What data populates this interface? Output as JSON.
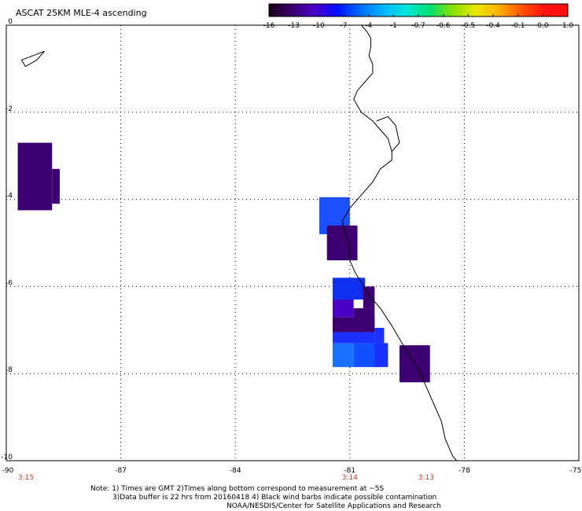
{
  "title": "ASCAT 25KM MLE-4 ascending",
  "colorbar": {
    "labels": [
      "-16",
      "-13",
      "-10",
      "-7",
      "-4",
      "-1",
      "-0.7",
      "-0.6",
      "-0.5",
      "-0.4",
      "-0.1",
      "0.0",
      "1.0"
    ],
    "colors": [
      "#1a0014",
      "#3d0070",
      "#4b00c8",
      "#0010ff",
      "#0070ff",
      "#00b8ff",
      "#00e8d8",
      "#00e070",
      "#8ce000",
      "#e8e800",
      "#ffb000",
      "#ff5000",
      "#ff1010"
    ]
  },
  "axes": {
    "lon_ticks": [
      "-90",
      "-87",
      "-84",
      "-81",
      "-78",
      "-75"
    ],
    "lat_ticks": [
      "0",
      "-2",
      "-4",
      "-6",
      "-8",
      "-10"
    ],
    "lon_range": [
      -90,
      -75
    ],
    "lat_range": [
      0,
      -10
    ]
  },
  "pass_times": [
    {
      "label": "3:15",
      "lon": -90
    },
    {
      "label": "3:14",
      "lon": -81
    },
    {
      "label": "3:13",
      "lon": -79
    }
  ],
  "notes": [
    "Note: 1) Times are GMT 2)Times along bottom correspond to measurement at ~5S",
    "3)Data buffer is 22 hrs from 20160418 4) Black wind barbs indicate possible contamination",
    "NOAA/NESDIS/Center for Satellite Applications and Research"
  ],
  "cells": [
    {
      "lon0": -89.7,
      "lon1": -88.8,
      "lat0": -2.7,
      "lat1": -4.25,
      "color": "#3d0070"
    },
    {
      "lon0": -88.8,
      "lon1": -88.6,
      "lat0": -3.3,
      "lat1": -4.1,
      "color": "#3d0070"
    },
    {
      "lon0": -81.8,
      "lon1": -81.0,
      "lat0": -3.95,
      "lat1": -4.8,
      "color": "#1a50ff"
    },
    {
      "lon0": -81.6,
      "lon1": -80.8,
      "lat0": -4.6,
      "lat1": -5.4,
      "color": "#3d0070"
    },
    {
      "lon0": -81.45,
      "lon1": -80.6,
      "lat0": -5.8,
      "lat1": -6.3,
      "color": "#1030f0"
    },
    {
      "lon0": -80.65,
      "lon1": -80.35,
      "lat0": -6.0,
      "lat1": -6.5,
      "color": "#3d0070"
    },
    {
      "lon0": -81.45,
      "lon1": -80.9,
      "lat0": -6.3,
      "lat1": -6.7,
      "color": "#4b00c8"
    },
    {
      "lon0": -80.9,
      "lon1": -80.35,
      "lat0": -6.5,
      "lat1": -6.85,
      "color": "#3d0070"
    },
    {
      "lon0": -81.45,
      "lon1": -80.35,
      "lat0": -6.7,
      "lat1": -7.05,
      "color": "#3d0070"
    },
    {
      "lon0": -81.45,
      "lon1": -80.35,
      "lat0": -7.05,
      "lat1": -7.3,
      "color": "#1a30ff"
    },
    {
      "lon0": -81.45,
      "lon1": -80.9,
      "lat0": -7.3,
      "lat1": -7.85,
      "color": "#1a70ff"
    },
    {
      "lon0": -80.9,
      "lon1": -80.3,
      "lat0": -7.3,
      "lat1": -7.85,
      "color": "#1050ff"
    },
    {
      "lon0": -80.35,
      "lon1": -80.0,
      "lat0": -7.3,
      "lat1": -7.85,
      "color": "#1a30ff"
    },
    {
      "lon0": -80.35,
      "lon1": -80.1,
      "lat0": -6.95,
      "lat1": -7.3,
      "color": "#1a30ff"
    },
    {
      "lon0": -79.7,
      "lon1": -78.9,
      "lat0": -7.35,
      "lat1": -8.2,
      "color": "#3d0070"
    }
  ],
  "coastline": [
    [
      -80.7,
      0.0
    ],
    [
      -80.55,
      -0.15
    ],
    [
      -80.45,
      -0.3
    ],
    [
      -80.45,
      -0.5
    ],
    [
      -80.5,
      -0.7
    ],
    [
      -80.4,
      -0.9
    ],
    [
      -80.4,
      -1.1
    ],
    [
      -80.6,
      -1.3
    ],
    [
      -80.8,
      -1.5
    ],
    [
      -80.9,
      -1.7
    ],
    [
      -80.7,
      -2.0
    ],
    [
      -80.4,
      -2.2
    ],
    [
      -80.2,
      -2.4
    ],
    [
      -80.0,
      -2.6
    ],
    [
      -79.9,
      -2.9
    ],
    [
      -79.9,
      -3.1
    ],
    [
      -80.2,
      -3.3
    ],
    [
      -80.4,
      -3.6
    ],
    [
      -80.7,
      -3.9
    ],
    [
      -81.0,
      -4.2
    ],
    [
      -81.2,
      -4.5
    ],
    [
      -81.1,
      -4.8
    ],
    [
      -81.0,
      -5.1
    ],
    [
      -81.0,
      -5.4
    ],
    [
      -80.85,
      -5.7
    ],
    [
      -80.7,
      -5.9
    ],
    [
      -80.5,
      -6.2
    ],
    [
      -80.2,
      -6.5
    ],
    [
      -79.9,
      -6.9
    ],
    [
      -79.7,
      -7.2
    ],
    [
      -79.5,
      -7.5
    ],
    [
      -79.2,
      -7.9
    ],
    [
      -79.0,
      -8.3
    ],
    [
      -78.8,
      -8.7
    ],
    [
      -78.6,
      -9.1
    ],
    [
      -78.5,
      -9.5
    ],
    [
      -78.3,
      -9.9
    ],
    [
      -78.2,
      -10.0
    ]
  ],
  "gulf_inlet": [
    [
      -80.3,
      -2.2
    ],
    [
      -80.0,
      -2.1
    ],
    [
      -79.8,
      -2.3
    ],
    [
      -79.7,
      -2.7
    ],
    [
      -79.9,
      -2.9
    ]
  ],
  "island": [
    [
      -89.6,
      -0.8
    ],
    [
      -89.3,
      -0.7
    ],
    [
      -89.0,
      -0.6
    ],
    [
      -89.2,
      -0.8
    ],
    [
      -89.5,
      -0.95
    ],
    [
      -89.6,
      -0.8
    ]
  ]
}
